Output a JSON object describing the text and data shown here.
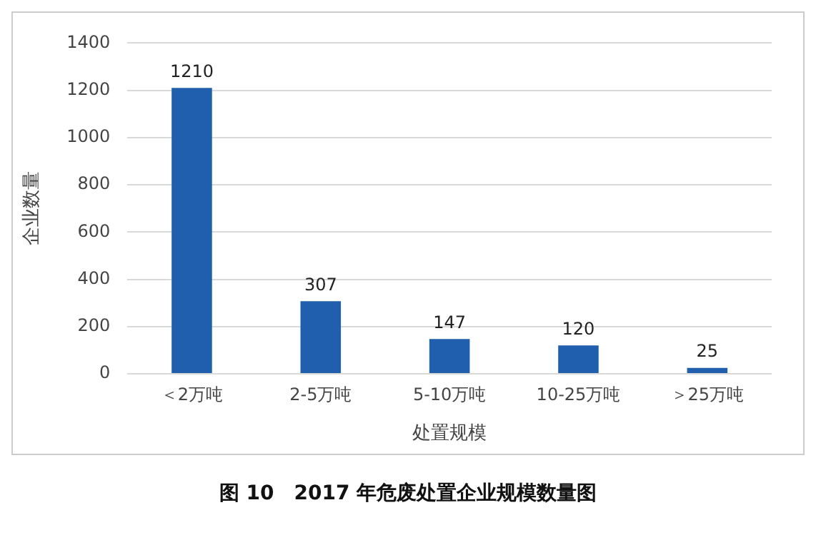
{
  "chart_data": {
    "type": "bar",
    "title": "图 10　2017 年危废处置企业规模数量图",
    "xlabel": "处置规模",
    "ylabel": "企业数量",
    "categories": [
      "＜2万吨",
      "2-5万吨",
      "5-10万吨",
      "10-25万吨",
      "＞25万吨"
    ],
    "values": [
      1210,
      307,
      147,
      120,
      25
    ],
    "color": "#1f5fad",
    "ylim": [
      0,
      1400
    ],
    "yticks": [
      0,
      200,
      400,
      600,
      800,
      1000,
      1200,
      1400
    ],
    "grid": "y",
    "data_labels": true,
    "legend": false
  }
}
